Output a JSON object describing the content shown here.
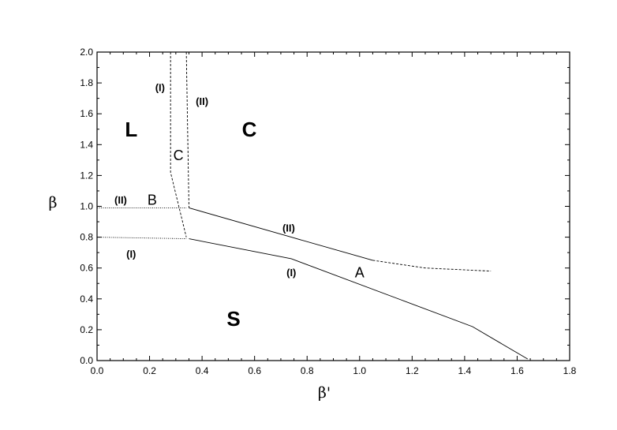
{
  "chart_data": {
    "type": "line",
    "title": "",
    "xlabel": "β'",
    "ylabel": "β",
    "xlim": [
      0.0,
      1.8
    ],
    "ylim": [
      0.0,
      2.0
    ],
    "x_ticks": [
      0.0,
      0.2,
      0.4,
      0.6,
      0.8,
      1.0,
      1.2,
      1.4,
      1.6,
      1.8
    ],
    "y_ticks": [
      0.0,
      0.2,
      0.4,
      0.6,
      0.8,
      1.0,
      1.2,
      1.4,
      1.6,
      1.8,
      2.0
    ],
    "x_tick_labels": [
      "0.0",
      "0.2",
      "0.4",
      "0.6",
      "0.8",
      "1.0",
      "1.2",
      "1.4",
      "1.6",
      "1.8"
    ],
    "y_tick_labels": [
      "0.0",
      "0.2",
      "0.4",
      "0.6",
      "0.8",
      "1.0",
      "1.2",
      "1.4",
      "1.6",
      "1.8",
      "2.0"
    ],
    "grid": false,
    "series": [
      {
        "style": "solid",
        "x": [
          0.35,
          0.74,
          1.05
        ],
        "y": [
          0.99,
          0.8,
          0.65
        ]
      },
      {
        "style": "dashed",
        "x": [
          1.05,
          1.25,
          1.5
        ],
        "y": [
          0.65,
          0.6,
          0.58
        ]
      },
      {
        "style": "solid",
        "x": [
          0.35,
          0.74,
          1.43,
          1.64
        ],
        "y": [
          0.79,
          0.66,
          0.22,
          0.01
        ]
      },
      {
        "style": "dotted",
        "x": [
          0.0,
          0.34
        ],
        "y": [
          0.99,
          0.99
        ]
      },
      {
        "style": "dotted",
        "x": [
          0.0,
          0.34
        ],
        "y": [
          0.8,
          0.79
        ]
      },
      {
        "style": "dashed",
        "x": [
          0.28,
          0.28,
          0.34
        ],
        "y": [
          2.0,
          1.22,
          0.8
        ]
      },
      {
        "style": "dashed",
        "x": [
          0.34,
          0.35
        ],
        "y": [
          2.0,
          0.99
        ]
      }
    ],
    "annotations": [
      {
        "text": "L",
        "kind": "region",
        "x": 0.13,
        "y": 1.5
      },
      {
        "text": "C",
        "kind": "region",
        "x": 0.58,
        "y": 1.5
      },
      {
        "text": "S",
        "kind": "region",
        "x": 0.52,
        "y": 0.27
      },
      {
        "text": "A",
        "kind": "point",
        "x": 1.0,
        "y": 0.57
      },
      {
        "text": "B",
        "kind": "point",
        "x": 0.21,
        "y": 1.04
      },
      {
        "text": "C",
        "kind": "point",
        "x": 0.31,
        "y": 1.33
      },
      {
        "text": "(I)",
        "kind": "line",
        "x": 0.24,
        "y": 1.77
      },
      {
        "text": "(II)",
        "kind": "line",
        "x": 0.4,
        "y": 1.68
      },
      {
        "text": "(II)",
        "kind": "line",
        "x": 0.09,
        "y": 1.04
      },
      {
        "text": "(I)",
        "kind": "line",
        "x": 0.13,
        "y": 0.69
      },
      {
        "text": "(II)",
        "kind": "line",
        "x": 0.73,
        "y": 0.86
      },
      {
        "text": "(I)",
        "kind": "line",
        "x": 0.74,
        "y": 0.57
      }
    ]
  }
}
